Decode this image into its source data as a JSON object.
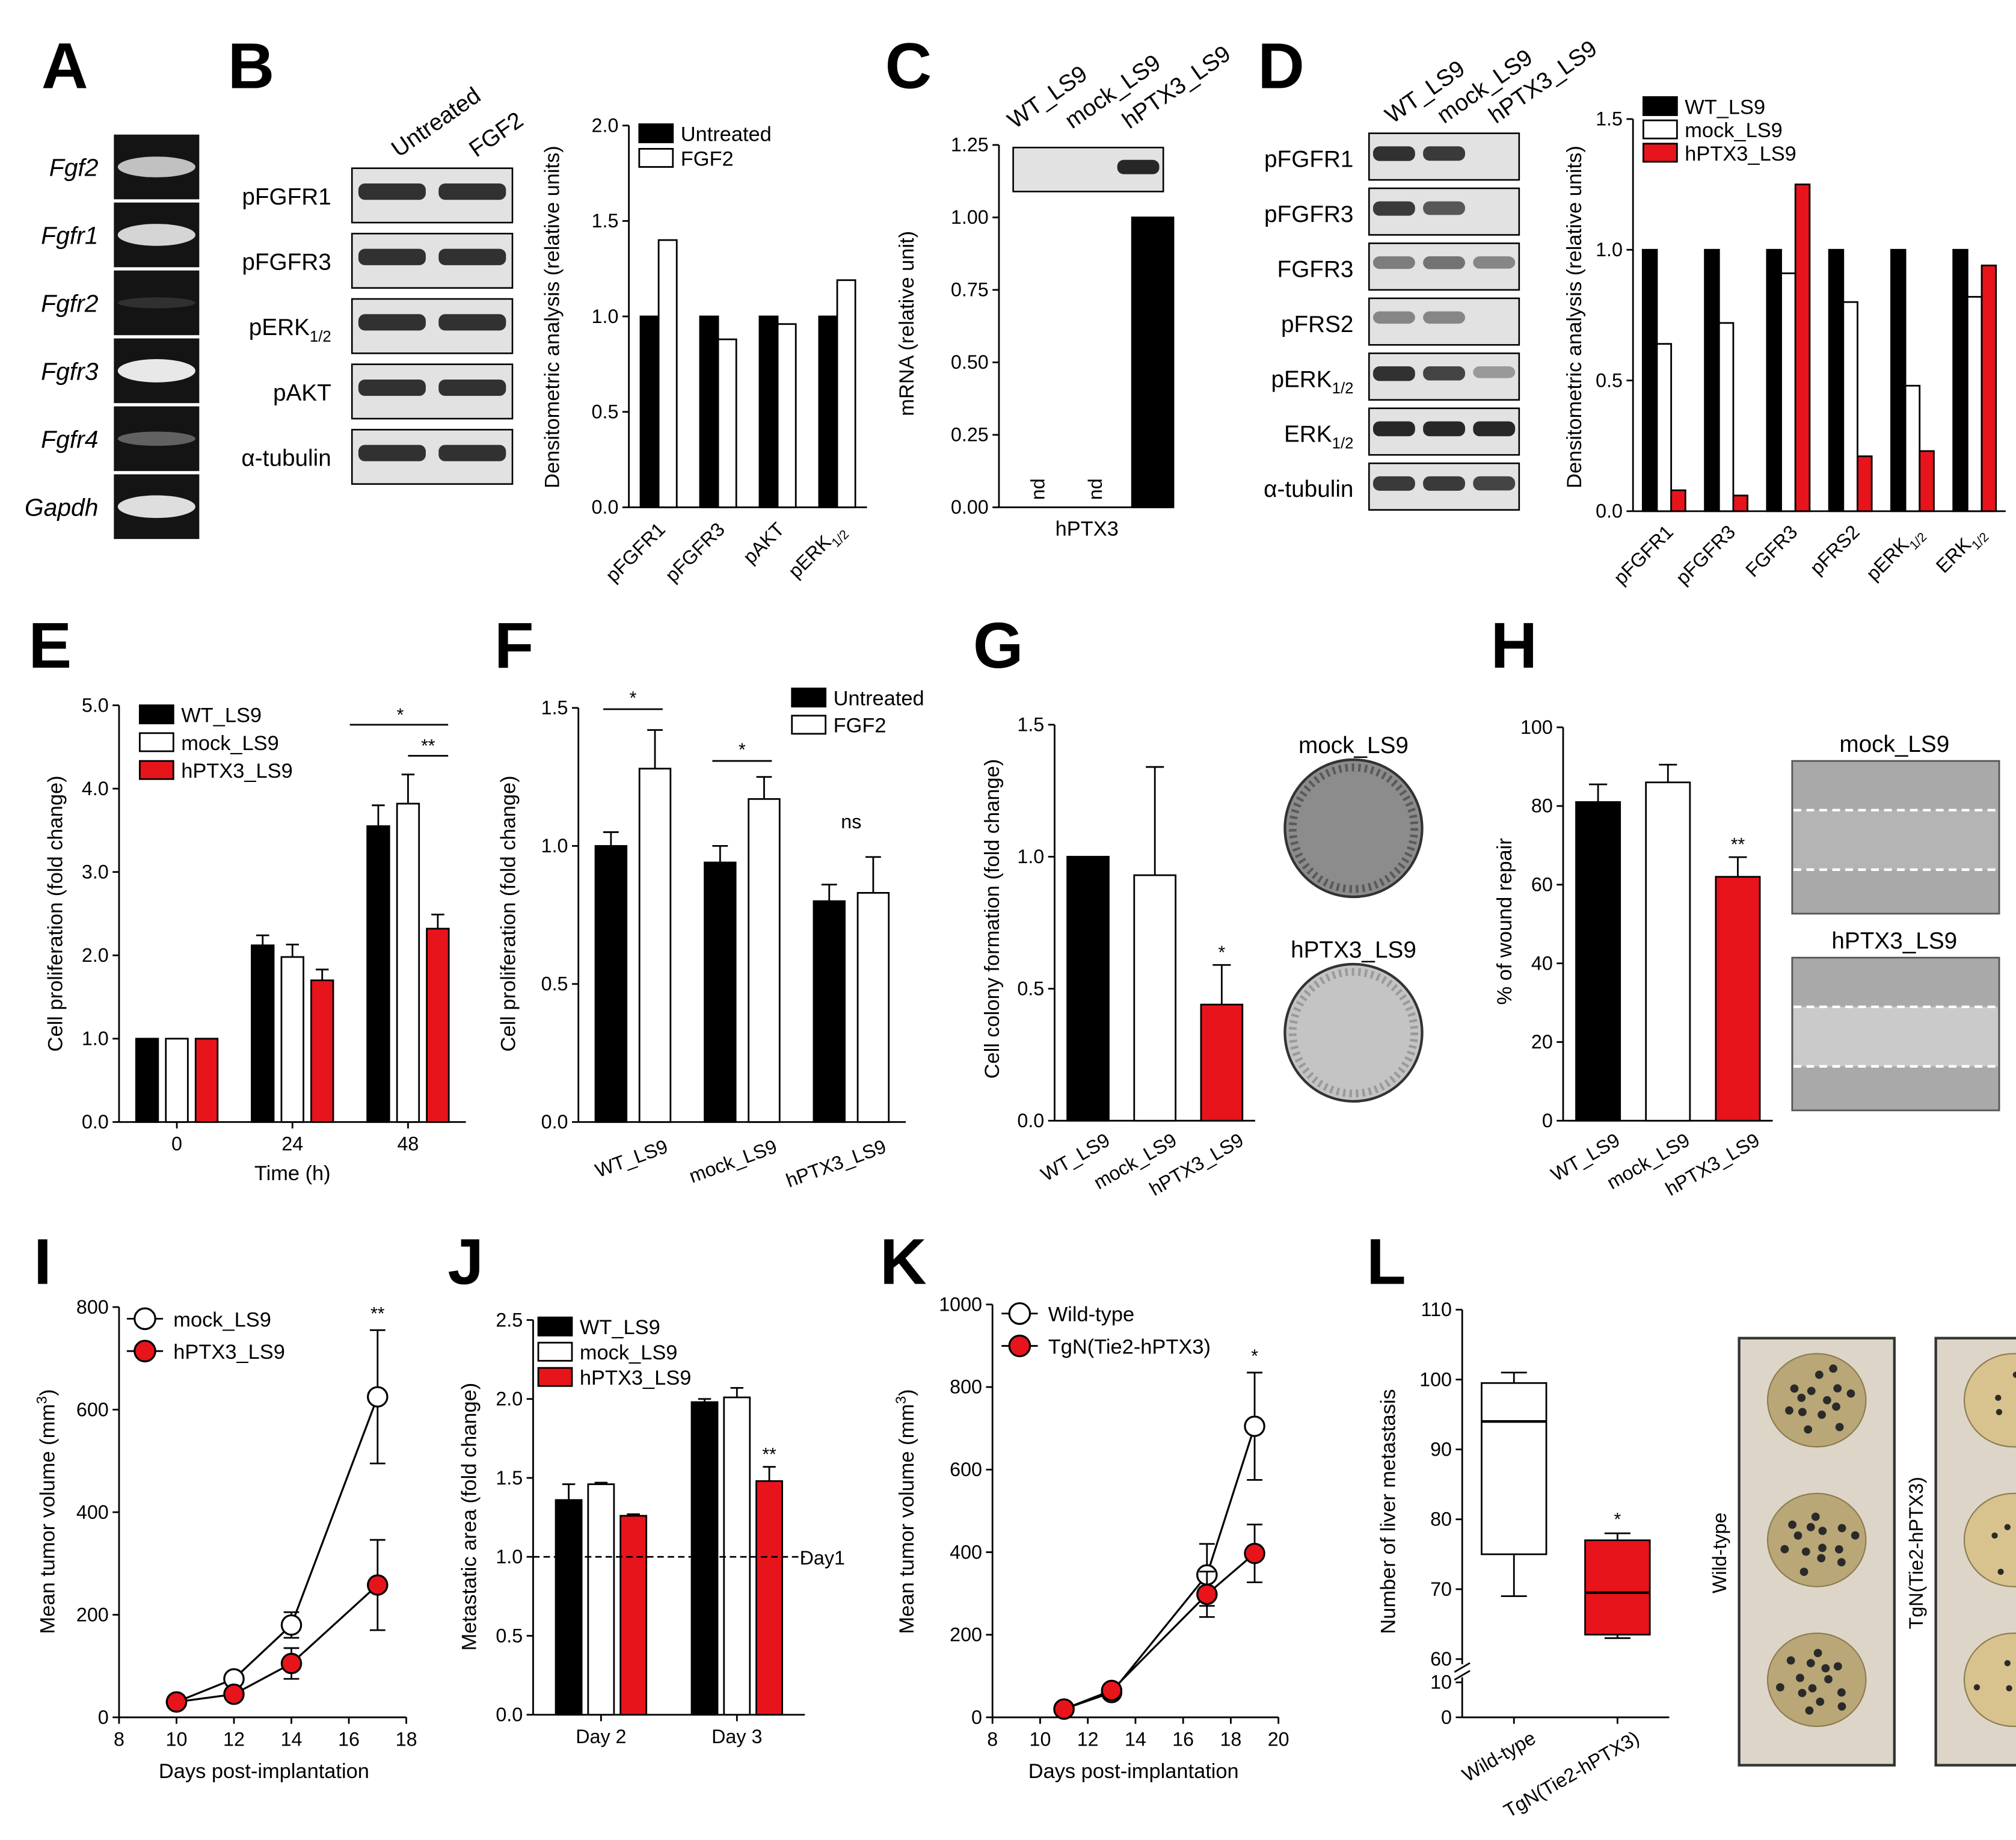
{
  "colors": {
    "black": "#000000",
    "white": "#ffffff",
    "red": "#e8141b",
    "blot_bg": "#e2e2e2",
    "gel_bg": "#141414"
  },
  "panel_labels": {
    "A": "A",
    "B": "B",
    "C": "C",
    "D": "D",
    "E": "E",
    "F": "F",
    "G": "G",
    "H": "H",
    "I": "I",
    "J": "J",
    "K": "K",
    "L": "L"
  },
  "A": {
    "genes": [
      "Fgf2",
      "Fgfr1",
      "Fgfr2",
      "Fgfr3",
      "Fgfr4",
      "Gapdh"
    ],
    "band_intensity": [
      0.8,
      0.9,
      0.05,
      1.0,
      0.3,
      0.95
    ]
  },
  "B": {
    "lanes": [
      "Untreated",
      "FGF2"
    ],
    "blot_rows": [
      {
        "label": "pFGFR1"
      },
      {
        "label": "pFGFR3"
      },
      {
        "label": "pERK",
        "sub": "1/2"
      },
      {
        "label": "pAKT"
      },
      {
        "label": "α-tubulin"
      }
    ]
  },
  "D": {
    "lanes": [
      "WT_LS9",
      "mock_LS9",
      "hPTX3_LS9"
    ],
    "blot_rows": [
      {
        "label": "pFGFR1"
      },
      {
        "label": "pFGFR3"
      },
      {
        "label": "FGFR3"
      },
      {
        "label": "pFRS2"
      },
      {
        "label": "pERK",
        "sub": "1/2"
      },
      {
        "label": "ERK",
        "sub": "1/2"
      },
      {
        "label": "α-tubulin"
      }
    ],
    "blot_intensity": [
      [
        0.85,
        0.8,
        0.05
      ],
      [
        0.8,
        0.65,
        0.05
      ],
      [
        0.45,
        0.5,
        0.4
      ],
      [
        0.4,
        0.4,
        0.05
      ],
      [
        0.85,
        0.75,
        0.3
      ],
      [
        0.9,
        0.9,
        0.9
      ],
      [
        0.8,
        0.8,
        0.75
      ]
    ]
  },
  "C": {
    "blot_lanes": [
      "WT_LS9",
      "mock_LS9",
      "hPTX3_LS9"
    ],
    "blot_intensity": [
      0.0,
      0.0,
      0.9
    ]
  },
  "G": {
    "images": [
      "mock_LS9",
      "hPTX3_LS9"
    ]
  },
  "H": {
    "images": [
      "mock_LS9",
      "hPTX3_LS9"
    ]
  },
  "L": {
    "photos": [
      "Wild-type",
      "TgN(Tie2-hPTX3)"
    ]
  },
  "chart_data": [
    {
      "panel": "B",
      "type": "bar",
      "categories": [
        "pFGFR1",
        "pFGFR3",
        "pAKT",
        "pERK"
      ],
      "category_subscripts": [
        "",
        "",
        "",
        "1/2"
      ],
      "series": [
        {
          "name": "Untreated",
          "fill": "black",
          "values": [
            1.0,
            1.0,
            1.0,
            1.0
          ]
        },
        {
          "name": "FGF2",
          "fill": "white",
          "values": [
            1.4,
            0.88,
            0.96,
            1.19
          ]
        }
      ],
      "ylabel": "Densitometric analysis (relative units)",
      "ylim": [
        0,
        2.0
      ],
      "yticks": [
        "0.0",
        "0.5",
        "1.0",
        "1.5",
        "2.0"
      ],
      "legend": "top-right"
    },
    {
      "panel": "C",
      "type": "bar",
      "categories": [
        "WT_LS9",
        "mock_LS9",
        "hPTX3_LS9"
      ],
      "values": [
        0,
        0,
        1.0
      ],
      "bar_text": [
        "nd",
        "nd",
        ""
      ],
      "xlabel": "hPTX3",
      "ylabel": "mRNA (relative unit)",
      "ylim": [
        0,
        1.25
      ],
      "yticks": [
        "0.00",
        "0.25",
        "0.50",
        "0.75",
        "1.00",
        "1.25"
      ]
    },
    {
      "panel": "D",
      "type": "bar",
      "categories": [
        "pFGFR1",
        "pFGFR3",
        "FGFR3",
        "pFRS2",
        "pERK",
        "ERK"
      ],
      "category_subscripts": [
        "",
        "",
        "",
        "",
        "1/2",
        "1/2"
      ],
      "series": [
        {
          "name": "WT_LS9",
          "fill": "black",
          "values": [
            1.0,
            1.0,
            1.0,
            1.0,
            1.0,
            1.0
          ]
        },
        {
          "name": "mock_LS9",
          "fill": "white",
          "values": [
            0.64,
            0.72,
            0.91,
            0.8,
            0.48,
            0.82
          ]
        },
        {
          "name": "hPTX3_LS9",
          "fill": "red",
          "values": [
            0.08,
            0.06,
            1.25,
            0.21,
            0.23,
            0.94
          ]
        }
      ],
      "ylabel": "Densitometric analysis (relative units)",
      "ylim": [
        0,
        1.5
      ],
      "yticks": [
        "0.0",
        "0.5",
        "1.0",
        "1.5"
      ],
      "legend": "top-left"
    },
    {
      "panel": "E",
      "type": "bar",
      "categories": [
        "0",
        "24",
        "48"
      ],
      "series": [
        {
          "name": "WT_LS9",
          "fill": "black",
          "values": [
            1.0,
            2.12,
            3.55
          ],
          "errors": [
            0,
            0.12,
            0.25
          ]
        },
        {
          "name": "mock_LS9",
          "fill": "white",
          "values": [
            1.0,
            1.98,
            3.82
          ],
          "errors": [
            0,
            0.15,
            0.35
          ]
        },
        {
          "name": "hPTX3_LS9",
          "fill": "red",
          "values": [
            1.0,
            1.7,
            2.32
          ],
          "errors": [
            0,
            0.13,
            0.17
          ]
        }
      ],
      "significance": [
        {
          "between": [
            0,
            2
          ],
          "category": 2,
          "label": "*"
        },
        {
          "between": [
            1,
            2
          ],
          "category": 2,
          "label": "**"
        }
      ],
      "xlabel": "Time (h)",
      "ylabel": "Cell proliferation (fold change)",
      "ylim": [
        0,
        5.0
      ],
      "yticks": [
        "0.0",
        "1.0",
        "2.0",
        "3.0",
        "4.0",
        "5.0"
      ],
      "legend": "top-left"
    },
    {
      "panel": "F",
      "type": "bar",
      "categories": [
        "WT_LS9",
        "mock_LS9",
        "hPTX3_LS9"
      ],
      "series": [
        {
          "name": "Untreated",
          "fill": "black",
          "values": [
            1.0,
            0.94,
            0.8
          ],
          "errors": [
            0.05,
            0.06,
            0.06
          ]
        },
        {
          "name": "FGF2",
          "fill": "white",
          "values": [
            1.28,
            1.17,
            0.83
          ],
          "errors": [
            0.14,
            0.08,
            0.13
          ]
        }
      ],
      "significance": [
        {
          "category": 0,
          "label": "*"
        },
        {
          "category": 1,
          "label": "*"
        },
        {
          "category": 2,
          "label": "ns"
        }
      ],
      "ylabel": "Cell proliferation (fold change)",
      "ylim": [
        0,
        1.5
      ],
      "yticks": [
        "0.0",
        "0.5",
        "1.0",
        "1.5"
      ],
      "legend": "top-right"
    },
    {
      "panel": "G",
      "type": "bar",
      "categories": [
        "WT_LS9",
        "mock_LS9",
        "hPTX3_LS9"
      ],
      "fills": [
        "black",
        "white",
        "red"
      ],
      "values": [
        1.0,
        0.93,
        0.44
      ],
      "errors": [
        0,
        0.41,
        0.15
      ],
      "significance": [
        "",
        "",
        "*"
      ],
      "ylabel": "Cell colony formation (fold change)",
      "ylim": [
        0,
        1.5
      ],
      "yticks": [
        "0.0",
        "0.5",
        "1.0",
        "1.5"
      ]
    },
    {
      "panel": "H",
      "type": "bar",
      "categories": [
        "WT_LS9",
        "mock_LS9",
        "hPTX3_LS9"
      ],
      "fills": [
        "black",
        "white",
        "red"
      ],
      "values": [
        81,
        86,
        62
      ],
      "errors": [
        4.5,
        4.5,
        5
      ],
      "significance": [
        "",
        "",
        "**"
      ],
      "ylabel": "% of wound repair",
      "ylim": [
        0,
        100
      ],
      "yticks": [
        "0",
        "20",
        "40",
        "60",
        "80",
        "100"
      ]
    },
    {
      "panel": "I",
      "type": "line",
      "series": [
        {
          "name": "mock_LS9",
          "marker_fill": "white",
          "x": [
            10,
            12,
            14,
            17
          ],
          "y": [
            30,
            75,
            180,
            625
          ],
          "errors": [
            5,
            12,
            25,
            130
          ]
        },
        {
          "name": "hPTX3_LS9",
          "marker_fill": "red",
          "x": [
            10,
            12,
            14,
            17
          ],
          "y": [
            30,
            45,
            105,
            258
          ],
          "errors": [
            5,
            10,
            30,
            88
          ]
        }
      ],
      "significance": [
        {
          "x": 17,
          "label": "**"
        }
      ],
      "xlabel": "Days post-implantation",
      "ylabel": "Mean tumor volume (mm",
      "ylabel_sup": "3",
      "ylabel_end": ")",
      "xlim": [
        8,
        18
      ],
      "xticks": [
        "8",
        "10",
        "12",
        "14",
        "16",
        "18"
      ],
      "ylim": [
        0,
        800
      ],
      "yticks": [
        "0",
        "200",
        "400",
        "600",
        "800"
      ],
      "legend": "top-left"
    },
    {
      "panel": "J",
      "type": "bar",
      "categories": [
        "Day 2",
        "Day 3"
      ],
      "series": [
        {
          "name": "WT_LS9",
          "fill": "black",
          "values": [
            1.36,
            1.98
          ],
          "errors": [
            0.1,
            0.02
          ]
        },
        {
          "name": "mock_LS9",
          "fill": "white",
          "values": [
            1.46,
            2.01
          ],
          "errors": [
            0.01,
            0.06
          ]
        },
        {
          "name": "hPTX3_LS9",
          "fill": "red",
          "values": [
            1.26,
            1.48
          ],
          "errors": [
            0.01,
            0.09
          ]
        }
      ],
      "significance": [
        {
          "category": 1,
          "series": 2,
          "label": "**"
        }
      ],
      "reference_line": {
        "y": 1.0,
        "label": "Day1"
      },
      "ylabel": "Metastatic area (fold change)",
      "ylim": [
        0,
        2.5
      ],
      "yticks": [
        "0.0",
        "0.5",
        "1.0",
        "1.5",
        "2.0",
        "2.5"
      ],
      "legend": "top-left"
    },
    {
      "panel": "K",
      "type": "line",
      "series": [
        {
          "name": "Wild-type",
          "marker_fill": "white",
          "x": [
            11,
            13,
            17,
            19
          ],
          "y": [
            20,
            60,
            345,
            705
          ],
          "errors": [
            5,
            10,
            75,
            130
          ]
        },
        {
          "name": "TgN(Tie2-hPTX3)",
          "marker_fill": "red",
          "x": [
            11,
            13,
            17,
            19
          ],
          "y": [
            20,
            65,
            298,
            397
          ],
          "errors": [
            5,
            12,
            55,
            70
          ]
        }
      ],
      "significance": [
        {
          "x": 19,
          "label": "*"
        }
      ],
      "xlabel": "Days post-implantation",
      "ylabel": "Mean tumor volume (mm",
      "ylabel_sup": "3",
      "ylabel_end": ")",
      "xlim": [
        8,
        20
      ],
      "xticks": [
        "8",
        "10",
        "12",
        "14",
        "16",
        "18",
        "20"
      ],
      "ylim": [
        0,
        1000
      ],
      "yticks": [
        "0",
        "200",
        "400",
        "600",
        "800",
        "1000"
      ],
      "legend": "top-left"
    },
    {
      "panel": "L",
      "type": "box",
      "categories": [
        "Wild-type",
        "TgN(Tie2-hPTX3)"
      ],
      "fills": [
        "white",
        "red"
      ],
      "boxes": [
        {
          "min": 69,
          "q1": 75,
          "median": 94,
          "q3": 99.5,
          "max": 101
        },
        {
          "min": 63,
          "q1": 63.5,
          "median": 69.5,
          "q3": 77,
          "max": 78
        }
      ],
      "significance": [
        "",
        "*"
      ],
      "ylabel": "Number of liver metastasis",
      "yaxis_break": "between 10 and 60",
      "yticks": [
        "0",
        "10",
        "60",
        "70",
        "80",
        "90",
        "100",
        "110"
      ]
    }
  ]
}
